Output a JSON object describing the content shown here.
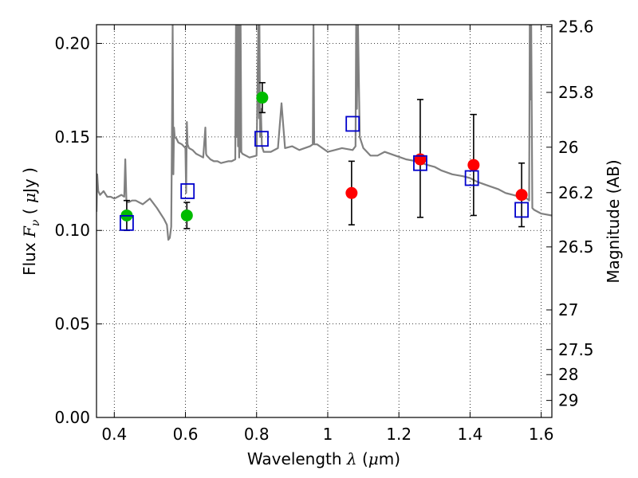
{
  "chart_data": {
    "type": "scatter",
    "title": "",
    "xlabel": "Wavelength  λ (μm)",
    "ylabel": "Flux  F_ν  ( μJy )",
    "y2label": "Magnitude (AB)",
    "xlim": [
      0.35,
      1.63
    ],
    "ylim": [
      0.0,
      0.21
    ],
    "grid": true,
    "grid_style": "dotted",
    "xticks": [
      0.4,
      0.6,
      0.8,
      1.0,
      1.2,
      1.4,
      1.6
    ],
    "xtick_labels": [
      "0.4",
      "0.6",
      "0.8",
      "1",
      "1.2",
      "1.4",
      "1.6"
    ],
    "yticks": [
      0.0,
      0.05,
      0.1,
      0.15,
      0.2
    ],
    "ytick_labels": [
      "0.00",
      "0.05",
      "0.10",
      "0.15",
      "0.20"
    ],
    "y2ticks": [
      {
        "label": "25.6",
        "flux": 0.2089
      },
      {
        "label": "25.8",
        "flux": 0.1738
      },
      {
        "label": "26",
        "flux": 0.1445
      },
      {
        "label": "26.2",
        "flux": 0.1202
      },
      {
        "label": "26.5",
        "flux": 0.0912
      },
      {
        "label": "27",
        "flux": 0.0575
      },
      {
        "label": "27.5",
        "flux": 0.0363
      },
      {
        "label": "28",
        "flux": 0.0229
      },
      {
        "label": "29",
        "flux": 0.0091
      }
    ],
    "series": [
      {
        "kind": "line",
        "color": "#808080",
        "x": [
          0.35,
          0.352,
          0.355,
          0.36,
          0.37,
          0.38,
          0.39,
          0.4,
          0.41,
          0.42,
          0.428,
          0.431,
          0.434,
          0.44,
          0.45,
          0.46,
          0.48,
          0.5,
          0.52,
          0.54,
          0.548,
          0.552,
          0.556,
          0.56,
          0.562,
          0.564,
          0.566,
          0.568,
          0.57,
          0.575,
          0.58,
          0.59,
          0.6,
          0.602,
          0.604,
          0.606,
          0.608,
          0.61,
          0.62,
          0.63,
          0.64,
          0.65,
          0.656,
          0.658,
          0.66,
          0.67,
          0.68,
          0.69,
          0.7,
          0.72,
          0.73,
          0.74,
          0.742,
          0.744,
          0.746,
          0.748,
          0.75,
          0.751,
          0.752,
          0.753,
          0.755,
          0.757,
          0.76,
          0.78,
          0.8,
          0.805,
          0.807,
          0.808,
          0.81,
          0.812,
          0.815,
          0.82,
          0.84,
          0.86,
          0.87,
          0.88,
          0.9,
          0.92,
          0.95,
          0.958,
          0.96,
          0.962,
          0.97,
          1.0,
          1.02,
          1.04,
          1.07,
          1.078,
          1.08,
          1.082,
          1.085,
          1.09,
          1.1,
          1.12,
          1.14,
          1.16,
          1.19,
          1.22,
          1.25,
          1.28,
          1.3,
          1.32,
          1.35,
          1.38,
          1.4,
          1.42,
          1.45,
          1.48,
          1.5,
          1.52,
          1.54,
          1.56,
          1.566,
          1.568,
          1.57,
          1.572,
          1.575,
          1.58,
          1.6,
          1.63
        ],
        "y": [
          0.11,
          0.13,
          0.121,
          0.119,
          0.121,
          0.118,
          0.118,
          0.117,
          0.118,
          0.119,
          0.118,
          0.138,
          0.116,
          0.115,
          0.116,
          0.116,
          0.114,
          0.117,
          0.112,
          0.106,
          0.103,
          0.095,
          0.096,
          0.102,
          0.15,
          0.21,
          0.13,
          0.155,
          0.15,
          0.149,
          0.147,
          0.146,
          0.144,
          0.12,
          0.158,
          0.146,
          0.145,
          0.144,
          0.143,
          0.141,
          0.14,
          0.139,
          0.155,
          0.141,
          0.14,
          0.138,
          0.137,
          0.137,
          0.136,
          0.137,
          0.137,
          0.138,
          0.21,
          0.15,
          0.21,
          0.145,
          0.21,
          0.139,
          0.21,
          0.142,
          0.21,
          0.142,
          0.141,
          0.139,
          0.14,
          0.21,
          0.16,
          0.21,
          0.15,
          0.165,
          0.145,
          0.142,
          0.142,
          0.144,
          0.168,
          0.144,
          0.145,
          0.143,
          0.145,
          0.146,
          0.21,
          0.146,
          0.146,
          0.142,
          0.143,
          0.144,
          0.143,
          0.145,
          0.21,
          0.165,
          0.21,
          0.15,
          0.144,
          0.14,
          0.14,
          0.142,
          0.14,
          0.138,
          0.137,
          0.135,
          0.134,
          0.132,
          0.13,
          0.129,
          0.128,
          0.126,
          0.124,
          0.122,
          0.12,
          0.119,
          0.118,
          0.117,
          0.116,
          0.21,
          0.17,
          0.21,
          0.112,
          0.111,
          0.109,
          0.108
        ]
      },
      {
        "kind": "markers",
        "marker": "circle",
        "color": "#00bb00",
        "x": [
          0.435,
          0.604,
          0.816
        ],
        "y": [
          0.108,
          0.108,
          0.171
        ],
        "yerr": [
          0.008,
          0.007,
          0.008
        ]
      },
      {
        "kind": "markers",
        "marker": "circle",
        "color": "#ff0000",
        "x": [
          1.067,
          1.26,
          1.41,
          1.545
        ],
        "y": [
          0.12,
          0.138,
          0.135,
          0.119
        ],
        "yerr_low": [
          0.017,
          0.031,
          0.027,
          0.017
        ],
        "yerr_high": [
          0.017,
          0.032,
          0.027,
          0.017
        ]
      },
      {
        "kind": "markers",
        "marker": "open-square",
        "color": "#0000cc",
        "x": [
          0.435,
          0.606,
          0.814,
          1.07,
          1.26,
          1.405,
          1.545
        ],
        "y": [
          0.104,
          0.121,
          0.149,
          0.157,
          0.136,
          0.128,
          0.111
        ]
      }
    ]
  }
}
